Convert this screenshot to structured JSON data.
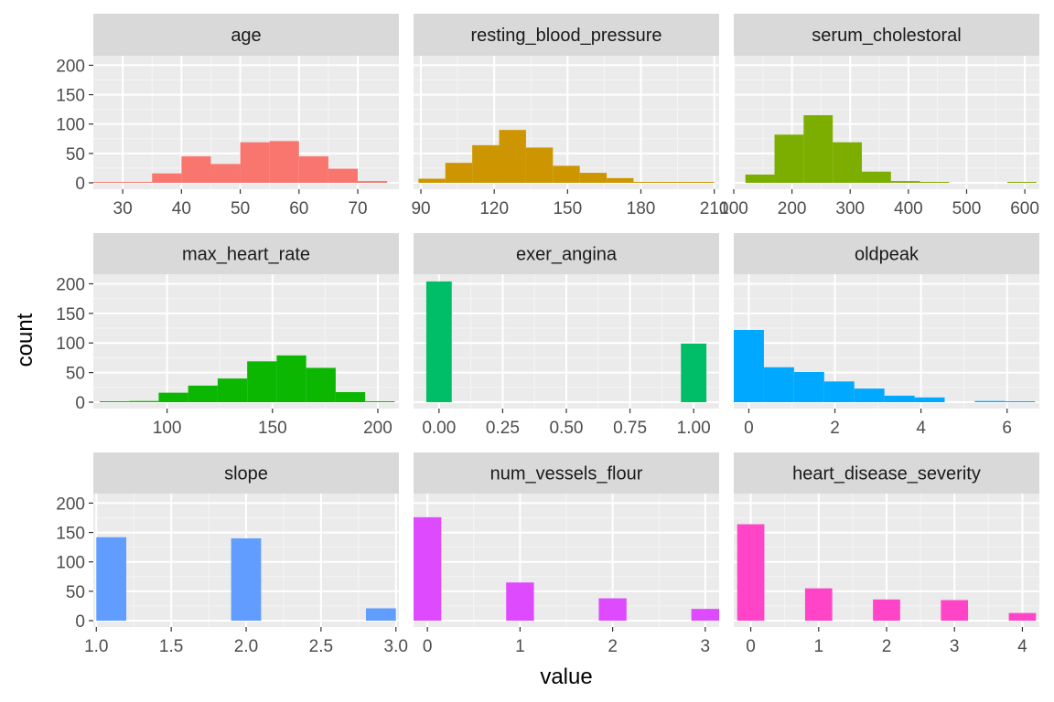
{
  "chart_data": {
    "type": "bar",
    "subtype": "faceted histogram",
    "xlabel": "value",
    "ylabel": "count",
    "ylim": [
      0,
      200
    ],
    "y_ticks": [
      "0",
      "50",
      "100",
      "150",
      "200"
    ],
    "grid": true,
    "legend": "none",
    "facets": [
      {
        "title": "age",
        "color": "#F8766D",
        "xlim": [
          25,
          77
        ],
        "x_ticks": [
          30,
          40,
          50,
          60,
          70
        ],
        "x_tick_labels": [
          "30",
          "40",
          "50",
          "60",
          "70"
        ],
        "bins": [
          {
            "x0": 25,
            "x1": 30,
            "count": 1
          },
          {
            "x0": 30,
            "x1": 35,
            "count": 1
          },
          {
            "x0": 35,
            "x1": 40,
            "count": 16
          },
          {
            "x0": 40,
            "x1": 45,
            "count": 45
          },
          {
            "x0": 45,
            "x1": 50,
            "count": 32
          },
          {
            "x0": 50,
            "x1": 55,
            "count": 69
          },
          {
            "x0": 55,
            "x1": 60,
            "count": 71
          },
          {
            "x0": 60,
            "x1": 65,
            "count": 45
          },
          {
            "x0": 65,
            "x1": 70,
            "count": 24
          },
          {
            "x0": 70,
            "x1": 75,
            "count": 3
          }
        ]
      },
      {
        "title": "resting_blood_pressure",
        "color": "#CD9600",
        "xlim": [
          87,
          212
        ],
        "x_ticks": [
          90,
          120,
          150,
          180,
          210
        ],
        "x_tick_labels": [
          "90",
          "120",
          "150",
          "180",
          "210"
        ],
        "bins": [
          {
            "x0": 89,
            "x1": 100,
            "count": 7
          },
          {
            "x0": 100,
            "x1": 111,
            "count": 34
          },
          {
            "x0": 111,
            "x1": 122,
            "count": 64
          },
          {
            "x0": 122,
            "x1": 133,
            "count": 90
          },
          {
            "x0": 133,
            "x1": 144,
            "count": 60
          },
          {
            "x0": 144,
            "x1": 155,
            "count": 29
          },
          {
            "x0": 155,
            "x1": 166,
            "count": 17
          },
          {
            "x0": 166,
            "x1": 177,
            "count": 8
          },
          {
            "x0": 177,
            "x1": 188,
            "count": 1
          },
          {
            "x0": 188,
            "x1": 199,
            "count": 1
          },
          {
            "x0": 199,
            "x1": 210,
            "count": 1
          }
        ]
      },
      {
        "title": "serum_cholestoral",
        "color": "#7CAE00",
        "xlim": [
          100,
          625
        ],
        "x_ticks": [
          100,
          200,
          300,
          400,
          500,
          600
        ],
        "x_tick_labels": [
          "100",
          "200",
          "300",
          "400",
          "500",
          "600"
        ],
        "bins": [
          {
            "x0": 120,
            "x1": 170,
            "count": 14
          },
          {
            "x0": 170,
            "x1": 220,
            "count": 82
          },
          {
            "x0": 220,
            "x1": 270,
            "count": 115
          },
          {
            "x0": 270,
            "x1": 320,
            "count": 69
          },
          {
            "x0": 320,
            "x1": 370,
            "count": 19
          },
          {
            "x0": 370,
            "x1": 420,
            "count": 3
          },
          {
            "x0": 420,
            "x1": 470,
            "count": 1
          },
          {
            "x0": 470,
            "x1": 520,
            "count": 0
          },
          {
            "x0": 520,
            "x1": 570,
            "count": 0
          },
          {
            "x0": 570,
            "x1": 620,
            "count": 1
          }
        ]
      },
      {
        "title": "max_heart_rate",
        "color": "#0CB702",
        "xlim": [
          65,
          210
        ],
        "x_ticks": [
          100,
          150,
          200
        ],
        "x_tick_labels": [
          "100",
          "150",
          "200"
        ],
        "bins": [
          {
            "x0": 68,
            "x1": 82,
            "count": 1
          },
          {
            "x0": 82,
            "x1": 96,
            "count": 2
          },
          {
            "x0": 96,
            "x1": 110,
            "count": 16
          },
          {
            "x0": 110,
            "x1": 124,
            "count": 28
          },
          {
            "x0": 124,
            "x1": 138,
            "count": 40
          },
          {
            "x0": 138,
            "x1": 152,
            "count": 69
          },
          {
            "x0": 152,
            "x1": 166,
            "count": 79
          },
          {
            "x0": 166,
            "x1": 180,
            "count": 58
          },
          {
            "x0": 180,
            "x1": 194,
            "count": 17
          },
          {
            "x0": 194,
            "x1": 208,
            "count": 1
          }
        ]
      },
      {
        "title": "exer_angina",
        "color": "#00BE67",
        "xlim": [
          -0.1,
          1.1
        ],
        "x_ticks": [
          0,
          0.25,
          0.5,
          0.75,
          1
        ],
        "x_tick_labels": [
          "0.00",
          "0.25",
          "0.50",
          "0.75",
          "1.00"
        ],
        "bins": [
          {
            "x0": -0.05,
            "x1": 0.05,
            "count": 204
          },
          {
            "x0": 0.95,
            "x1": 1.05,
            "count": 99
          }
        ]
      },
      {
        "title": "oldpeak",
        "color": "#00A9FF",
        "xlim": [
          -0.35,
          6.75
        ],
        "x_ticks": [
          0,
          2,
          4,
          6
        ],
        "x_tick_labels": [
          "0",
          "2",
          "4",
          "6"
        ],
        "bins": [
          {
            "x0": -0.35,
            "x1": 0.35,
            "count": 122
          },
          {
            "x0": 0.35,
            "x1": 1.05,
            "count": 59
          },
          {
            "x0": 1.05,
            "x1": 1.75,
            "count": 51
          },
          {
            "x0": 1.75,
            "x1": 2.45,
            "count": 35
          },
          {
            "x0": 2.45,
            "x1": 3.15,
            "count": 23
          },
          {
            "x0": 3.15,
            "x1": 3.85,
            "count": 11
          },
          {
            "x0": 3.85,
            "x1": 4.55,
            "count": 8
          },
          {
            "x0": 4.55,
            "x1": 5.25,
            "count": 0
          },
          {
            "x0": 5.25,
            "x1": 5.95,
            "count": 2
          },
          {
            "x0": 5.95,
            "x1": 6.65,
            "count": 1
          }
        ]
      },
      {
        "title": "slope",
        "color": "#619CFF",
        "xlim": [
          0.98,
          3.02
        ],
        "x_ticks": [
          1,
          1.5,
          2,
          2.5,
          3
        ],
        "x_tick_labels": [
          "1.0",
          "1.5",
          "2.0",
          "2.5",
          "3.0"
        ],
        "bins": [
          {
            "x0": 1.0,
            "x1": 1.2,
            "count": 142
          },
          {
            "x0": 1.9,
            "x1": 2.1,
            "count": 140
          },
          {
            "x0": 2.8,
            "x1": 3.0,
            "count": 21
          }
        ]
      },
      {
        "title": "num_vessels_flour",
        "color": "#DE4BFF",
        "xlim": [
          -0.15,
          3.15
        ],
        "x_ticks": [
          0,
          1,
          2,
          3
        ],
        "x_tick_labels": [
          "0",
          "1",
          "2",
          "3"
        ],
        "bins": [
          {
            "x0": -0.15,
            "x1": 0.15,
            "count": 176
          },
          {
            "x0": 0.85,
            "x1": 1.15,
            "count": 65
          },
          {
            "x0": 1.85,
            "x1": 2.15,
            "count": 38
          },
          {
            "x0": 2.85,
            "x1": 3.15,
            "count": 20
          }
        ]
      },
      {
        "title": "heart_disease_severity",
        "color": "#FF44C8",
        "xlim": [
          -0.25,
          4.25
        ],
        "x_ticks": [
          0,
          1,
          2,
          3,
          4
        ],
        "x_tick_labels": [
          "0",
          "1",
          "2",
          "3",
          "4"
        ],
        "bins": [
          {
            "x0": -0.2,
            "x1": 0.2,
            "count": 164
          },
          {
            "x0": 0.8,
            "x1": 1.2,
            "count": 55
          },
          {
            "x0": 1.8,
            "x1": 2.2,
            "count": 36
          },
          {
            "x0": 2.8,
            "x1": 3.2,
            "count": 35
          },
          {
            "x0": 3.8,
            "x1": 4.2,
            "count": 13
          }
        ]
      }
    ]
  }
}
